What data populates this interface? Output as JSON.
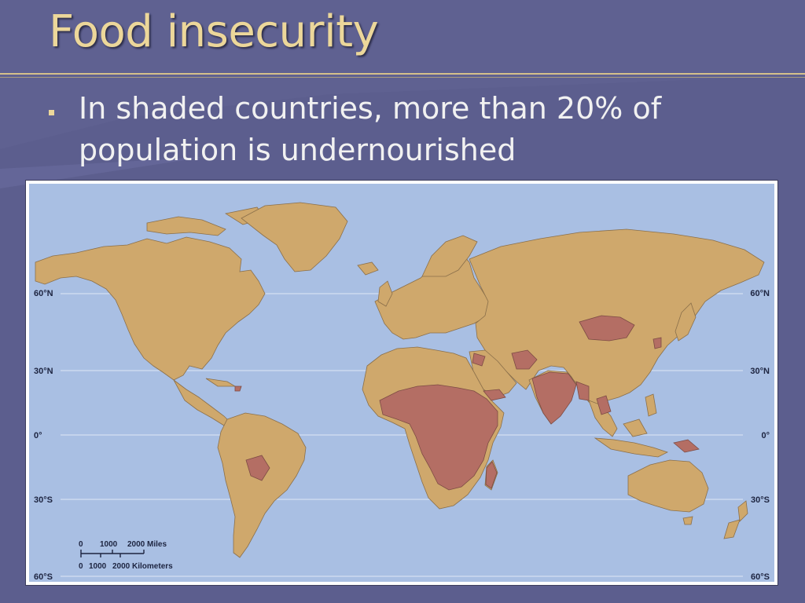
{
  "slide": {
    "title": "Food insecurity",
    "bullet": "In shaded countries, more than 20% of population is undernourished"
  },
  "colors": {
    "background": "#5f6191",
    "title": "#ecd79a",
    "ocean": "#a9bfe3",
    "land": "#cfa86c",
    "shaded": "#b46e64",
    "border": "#8a6f4a"
  },
  "map": {
    "latitude_labels": [
      "60°N",
      "30°N",
      "0°",
      "30°S",
      "60°S"
    ],
    "scale": {
      "miles_ticks": [
        "0",
        "1000",
        "2000 Miles"
      ],
      "km_ticks": [
        "0",
        "1000",
        "2000 Kilometers"
      ]
    }
  }
}
